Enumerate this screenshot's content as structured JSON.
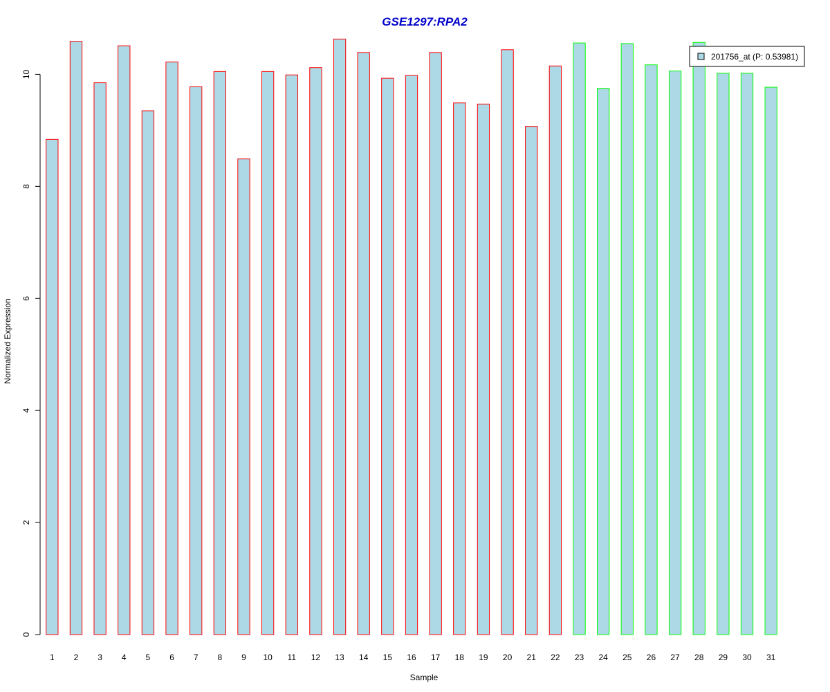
{
  "chart_data": {
    "type": "bar",
    "title": "GSE1297:RPA2",
    "xlabel": "Sample",
    "ylabel": "Normalized Expression",
    "ylim": [
      0,
      10.66
    ],
    "yticks": [
      0,
      2,
      4,
      6,
      8,
      10
    ],
    "categories": [
      "1",
      "2",
      "3",
      "4",
      "5",
      "6",
      "7",
      "8",
      "9",
      "10",
      "11",
      "12",
      "13",
      "14",
      "15",
      "16",
      "17",
      "18",
      "19",
      "20",
      "21",
      "22",
      "23",
      "24",
      "25",
      "26",
      "27",
      "28",
      "29",
      "30",
      "31"
    ],
    "values": [
      8.84,
      10.59,
      9.85,
      10.51,
      9.35,
      10.22,
      9.78,
      10.05,
      8.49,
      10.05,
      9.99,
      10.12,
      10.63,
      10.39,
      9.93,
      9.98,
      10.39,
      9.49,
      9.47,
      10.44,
      9.07,
      10.15,
      10.56,
      9.75,
      10.55,
      10.17,
      10.06,
      10.57,
      10.02,
      10.02,
      9.77
    ],
    "group_edge_colors": [
      "#ff0000",
      "#ff0000",
      "#ff0000",
      "#ff0000",
      "#ff0000",
      "#ff0000",
      "#ff0000",
      "#ff0000",
      "#ff0000",
      "#ff0000",
      "#ff0000",
      "#ff0000",
      "#ff0000",
      "#ff0000",
      "#ff0000",
      "#ff0000",
      "#ff0000",
      "#ff0000",
      "#ff0000",
      "#ff0000",
      "#ff0000",
      "#ff0000",
      "#00ff00",
      "#00ff00",
      "#00ff00",
      "#00ff00",
      "#00ff00",
      "#00ff00",
      "#00ff00",
      "#00ff00",
      "#00ff00"
    ],
    "bar_fill": "#add8e6",
    "title_color": "#0000cc",
    "grid": false,
    "legend": {
      "placement": "top-right",
      "entries": [
        {
          "label": "201756_at (P: 0.53981)",
          "color": "#add8e6"
        }
      ]
    }
  }
}
